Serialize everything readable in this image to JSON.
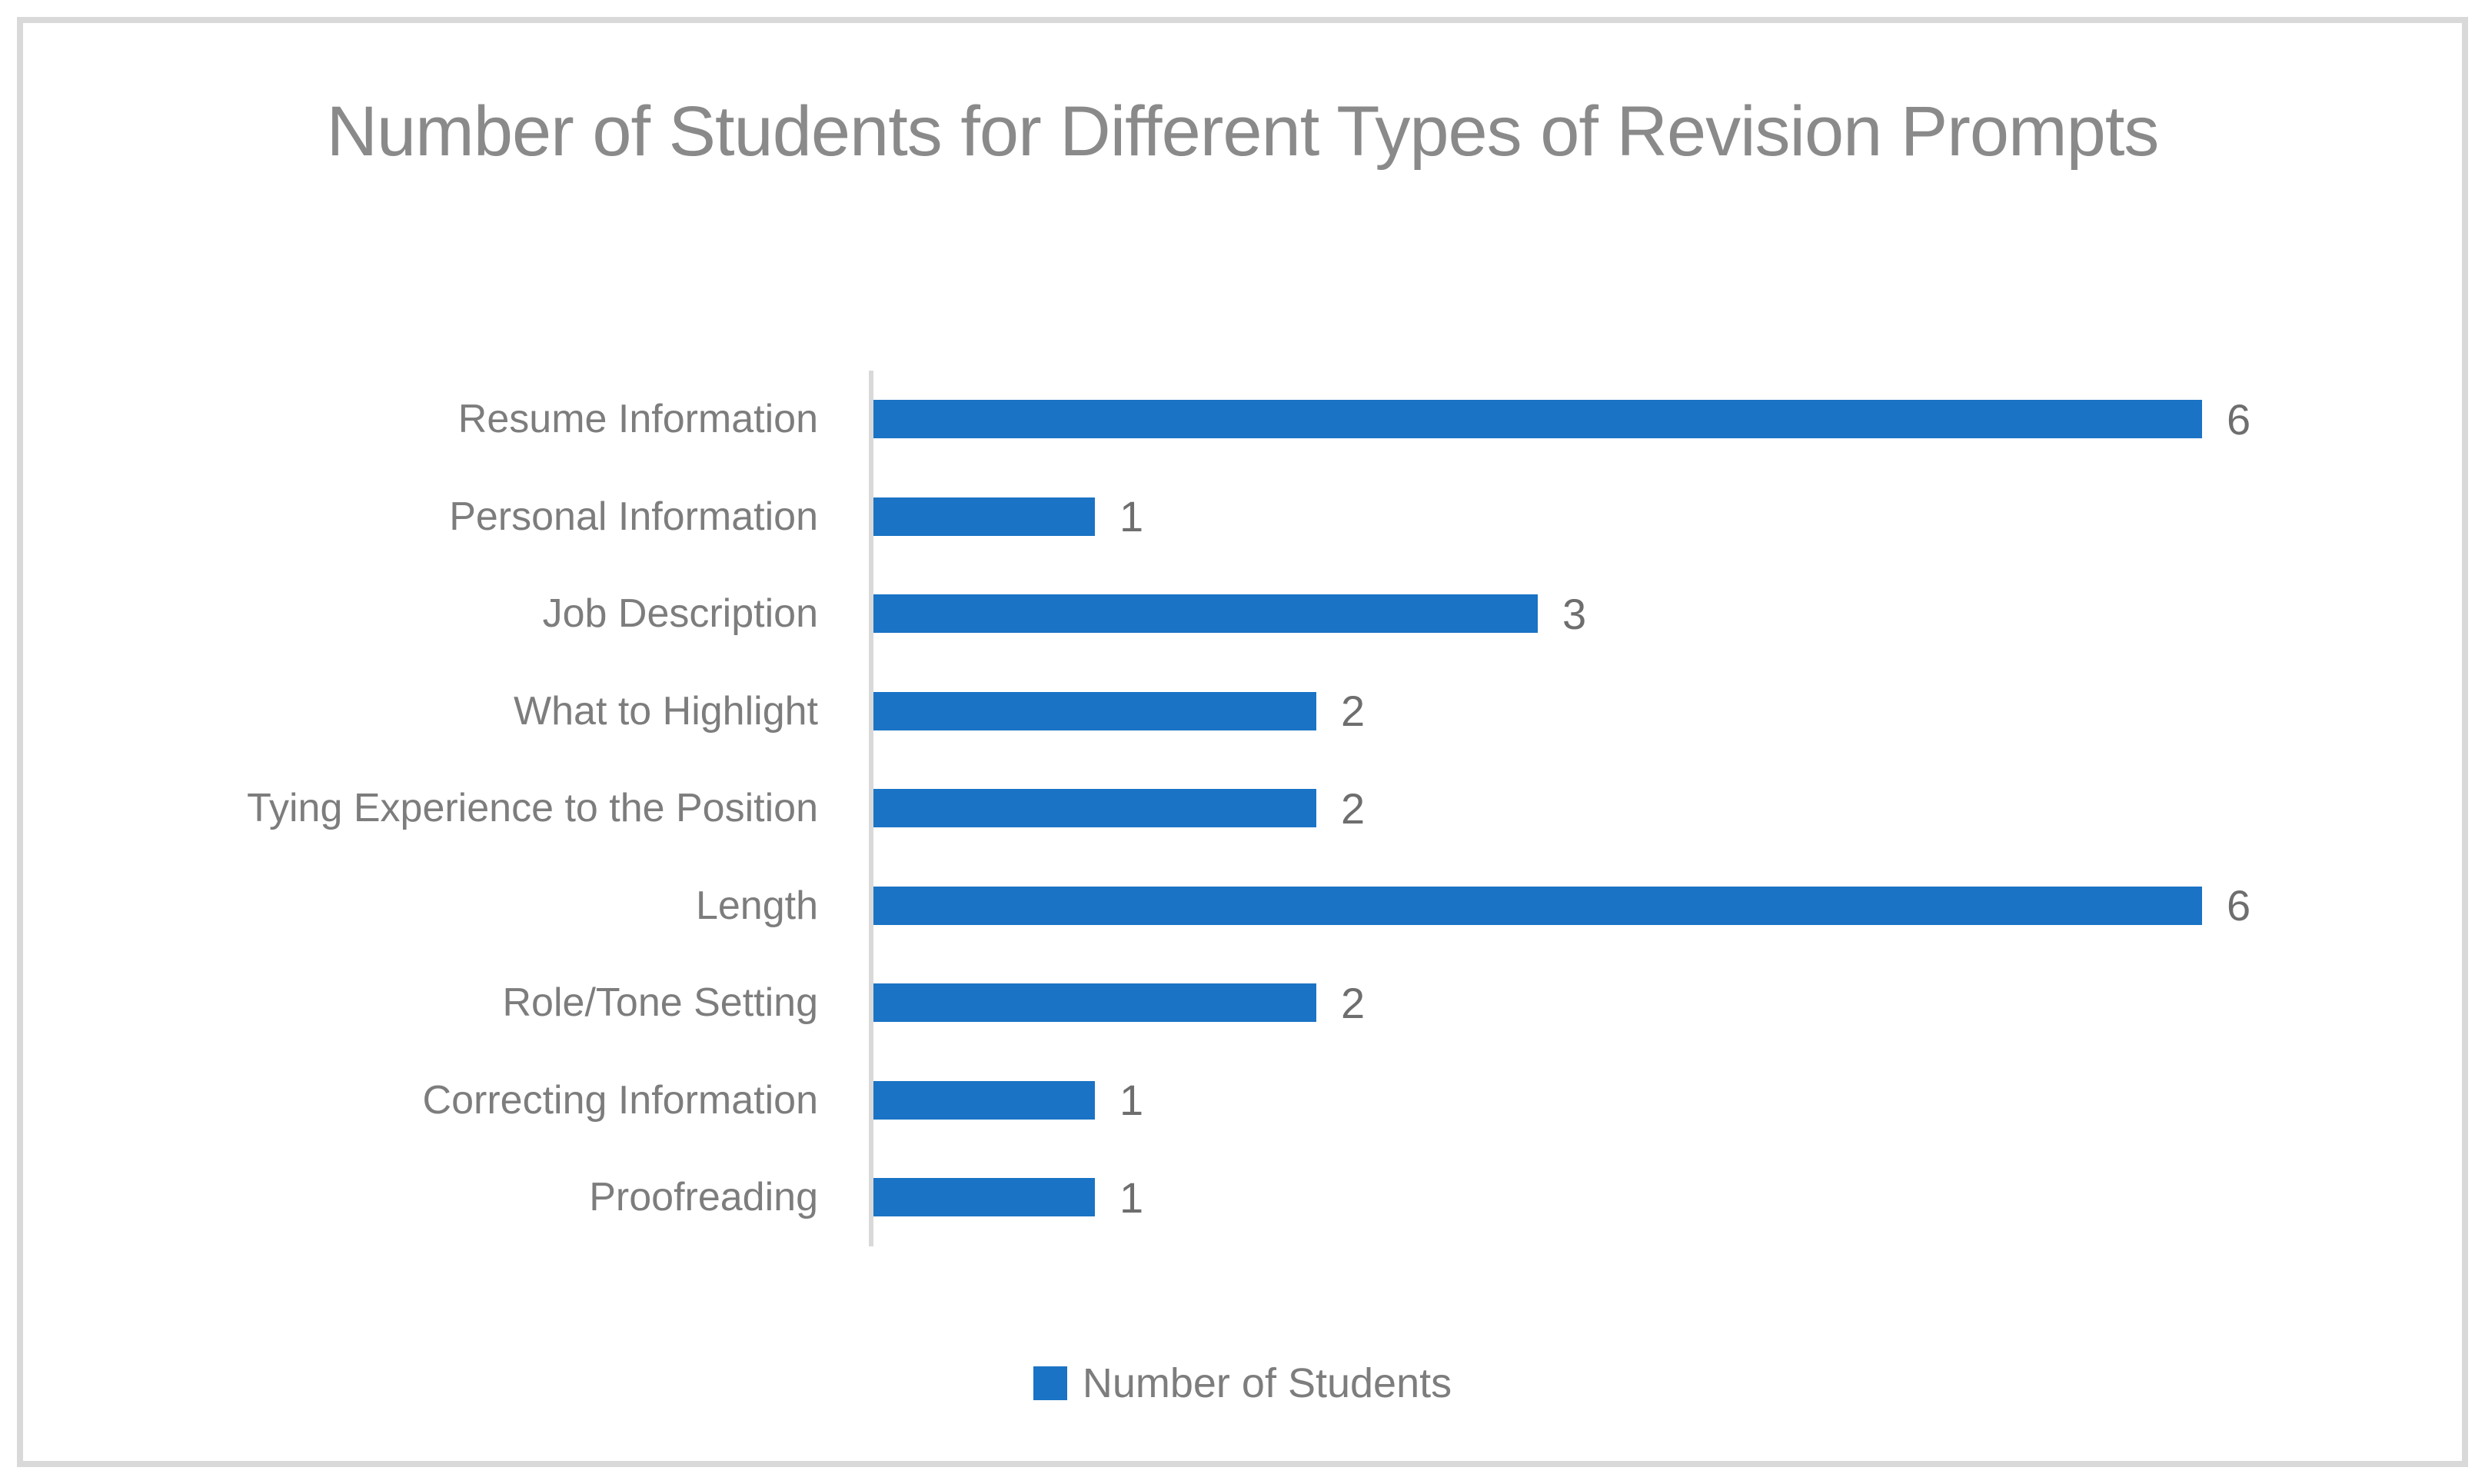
{
  "chart_data": {
    "type": "bar",
    "orientation": "horizontal",
    "title": "Number of Students for Different Types of Revision Prompts",
    "categories": [
      "Resume Information",
      "Personal Information",
      "Job Description",
      "What to Highlight",
      "Tying Experience to the Position",
      "Length",
      "Role/Tone Setting",
      "Correcting Information",
      "Proofreading"
    ],
    "series": [
      {
        "name": "Number of Students",
        "values": [
          6,
          1,
          3,
          2,
          2,
          6,
          2,
          1,
          1
        ]
      }
    ],
    "data_labels": [
      6,
      1,
      3,
      2,
      2,
      6,
      2,
      1,
      1
    ],
    "xlim": [
      0,
      7
    ],
    "grid": false,
    "x_axis_visible": false,
    "y_axis_line": true,
    "legend_position": "bottom"
  },
  "legend": {
    "label": "Number of Students"
  },
  "colors": {
    "bar": "#1A73C5",
    "axis_line": "#D9D9D9",
    "frame_border": "#D9D9D9",
    "title_text": "#8A8A8A",
    "category_text": "#7D7D7D",
    "value_text": "#6E6E6E",
    "background": "#FFFFFF"
  }
}
